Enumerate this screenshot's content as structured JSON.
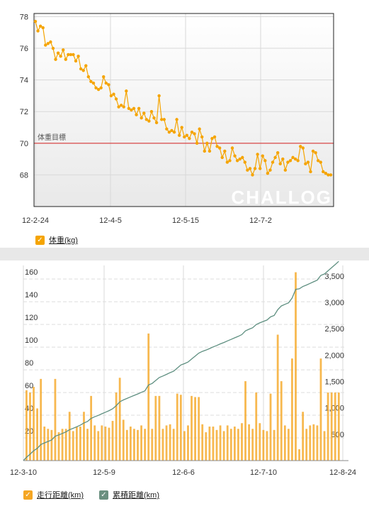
{
  "chart_data": [
    {
      "type": "line",
      "title": "",
      "xlabel": "",
      "ylabel": "",
      "x_ticks": [
        "12-2-24",
        "12-4-5",
        "12-5-15",
        "12-7-2"
      ],
      "y_ticks": [
        68,
        70,
        72,
        74,
        76,
        78
      ],
      "ylim": [
        66.0,
        78.2
      ],
      "target": {
        "label": "体重目標",
        "value": 70
      },
      "series": [
        {
          "name": "体重",
          "unit": "(kg)",
          "color": "#f5a400",
          "values": [
            77.7,
            77.1,
            77.4,
            77.3,
            76.2,
            76.3,
            76.4,
            76.0,
            75.3,
            75.7,
            75.5,
            75.9,
            75.3,
            75.6,
            75.6,
            75.6,
            75.2,
            75.5,
            74.7,
            74.6,
            74.9,
            74.2,
            73.9,
            73.8,
            73.5,
            73.4,
            73.5,
            74.2,
            73.8,
            73.7,
            73.0,
            73.1,
            72.8,
            72.3,
            72.4,
            72.3,
            73.3,
            72.2,
            72.1,
            72.2,
            71.8,
            72.2,
            71.6,
            71.9,
            71.5,
            71.4,
            72.0,
            71.6,
            71.3,
            73.0,
            71.5,
            71.5,
            70.9,
            70.7,
            70.8,
            70.7,
            71.5,
            70.5,
            71.0,
            70.4,
            70.5,
            70.3,
            70.7,
            70.6,
            70.0,
            70.9,
            70.4,
            69.5,
            70.0,
            69.5,
            70.3,
            70.4,
            69.8,
            69.7,
            69.1,
            69.5,
            68.8,
            68.9,
            69.7,
            69.2,
            68.9,
            69.0,
            69.1,
            68.8,
            68.3,
            68.4,
            68.0,
            68.4,
            69.3,
            68.4,
            69.2,
            68.9,
            68.1,
            68.3,
            68.8,
            69.1,
            69.4,
            68.7,
            69.0,
            68.3,
            68.8,
            68.9,
            69.1,
            69.0,
            68.9,
            69.8,
            69.7,
            68.7,
            68.8,
            68.2,
            69.5,
            69.4,
            68.9,
            68.8,
            68.2,
            68.1,
            68.0,
            68.0
          ]
        }
      ]
    },
    {
      "type": "bar",
      "title": "",
      "xlabel": "",
      "ylabel": "",
      "x_ticks": [
        "12-3-10",
        "12-5-9",
        "12-6-6",
        "12-7-10",
        "12-8-24"
      ],
      "y_ticks_left": [
        20,
        40,
        60,
        80,
        100,
        120,
        140,
        160
      ],
      "y_ticks_right": [
        "500",
        "1,000",
        "1,500",
        "2,000",
        "2,500",
        "3,000",
        "3,500"
      ],
      "ylim_left": [
        0,
        172
      ],
      "ylim_right": [
        0,
        3700
      ],
      "series": [
        {
          "name": "走行距離",
          "unit": "(km)",
          "color": "#f5a623",
          "values": [
            62,
            60,
            65,
            46,
            72,
            30,
            28,
            27,
            72,
            25,
            28,
            28,
            43,
            26,
            30,
            30,
            43,
            28,
            57,
            31,
            26,
            31,
            30,
            29,
            35,
            60,
            73,
            36,
            27,
            30,
            28,
            27,
            31,
            28,
            112,
            28,
            57,
            57,
            28,
            31,
            32,
            28,
            59,
            58,
            26,
            31,
            57,
            56,
            56,
            32,
            25,
            30,
            30,
            27,
            31,
            26,
            31,
            28,
            30,
            28,
            33,
            70,
            32,
            28,
            60,
            33,
            27,
            26,
            59,
            27,
            111,
            70,
            31,
            28,
            90,
            166,
            10,
            43,
            28,
            31,
            32,
            31,
            90,
            26,
            60,
            60,
            60,
            60
          ]
        },
        {
          "name": "累積距離",
          "unit": "(km)",
          "color": "#5e8f80",
          "cumulative": true
        }
      ]
    }
  ],
  "colors": {
    "accent": "#f5a400",
    "target_line": "#d62020",
    "cumulative": "#5e8f80",
    "check_green": "#6b9080"
  },
  "watermark": "CHALLOG"
}
